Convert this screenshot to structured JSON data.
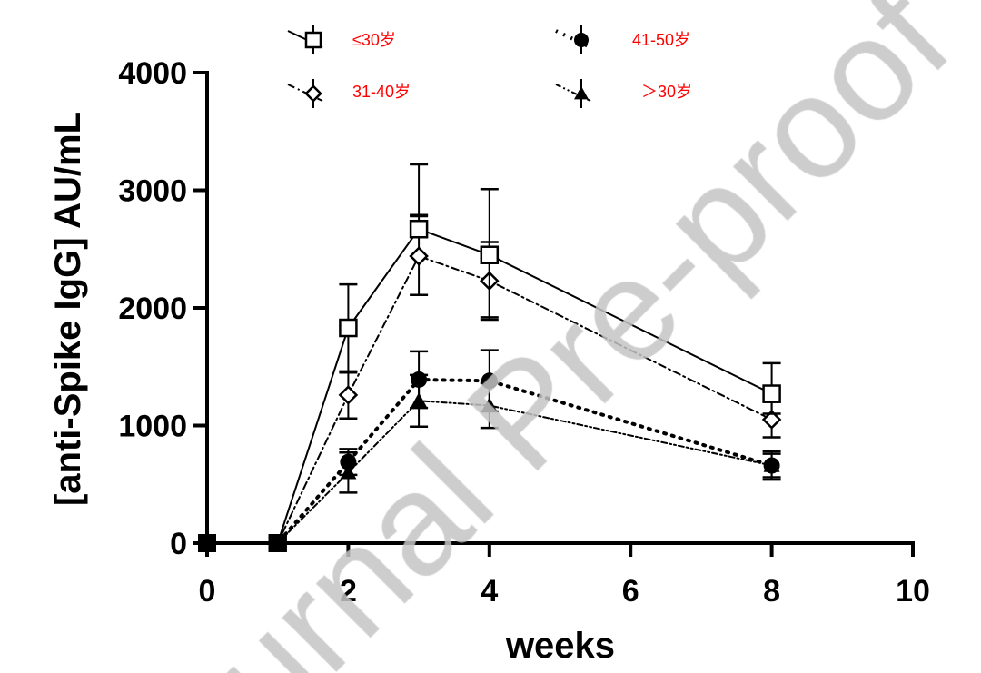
{
  "chart_data": {
    "type": "line",
    "title": "",
    "xlabel": "weeks",
    "ylabel": "[anti-Spike IgG] AU/mL",
    "xlim": [
      0,
      10
    ],
    "ylim": [
      0,
      4000
    ],
    "xticks": [
      0,
      2,
      4,
      6,
      8,
      10
    ],
    "yticks": [
      0,
      1000,
      2000,
      3000,
      4000
    ],
    "grid": false,
    "legend_position": "top",
    "x": [
      0,
      1,
      2,
      3,
      4,
      8
    ],
    "series": [
      {
        "name": "≤30岁",
        "marker": "square-open",
        "line": "solid",
        "values": [
          0,
          0,
          1830,
          2670,
          2450,
          1270
        ],
        "err_upper": [
          0,
          0,
          2200,
          3220,
          3010,
          1530
        ],
        "err_lower": [
          0,
          0,
          1460,
          2790,
          1920,
          1100
        ]
      },
      {
        "name": "31-40岁",
        "marker": "diamond-open",
        "line": "dashdot",
        "values": [
          0,
          0,
          1260,
          2440,
          2230,
          1050
        ],
        "err_upper": [
          0,
          0,
          1450,
          2780,
          2560,
          1200
        ],
        "err_lower": [
          0,
          0,
          1060,
          2110,
          1900,
          900
        ]
      },
      {
        "name": "41-50岁",
        "marker": "circle-filled",
        "line": "dotted",
        "values": [
          0,
          0,
          690,
          1390,
          1380,
          660
        ],
        "err_upper": [
          0,
          0,
          800,
          1630,
          1640,
          760
        ],
        "err_lower": [
          0,
          0,
          580,
          1150,
          1120,
          560
        ]
      },
      {
        "name": "＞30岁",
        "marker": "triangle-filled",
        "line": "dashdotdot",
        "values": [
          0,
          0,
          600,
          1210,
          1170,
          660
        ],
        "err_upper": [
          0,
          0,
          770,
          1430,
          1360,
          780
        ],
        "err_lower": [
          0,
          0,
          430,
          990,
          980,
          540
        ]
      }
    ]
  },
  "watermark": "Journal Pre-proof"
}
